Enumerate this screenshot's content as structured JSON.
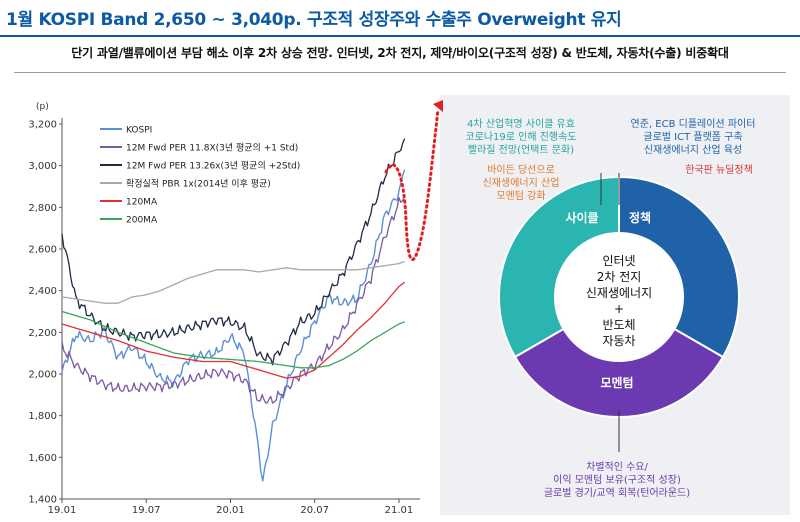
{
  "header": {
    "title": "1월 KOSPI Band 2,650 ~ 3,040p. 구조적 성장주와 수출주 Overweight 유지",
    "subtitle": "단기 과열/밸류에이션 부담 해소 이후 2차 상승 전망. 인터넷, 2차 전지, 제약/바이오(구조적 성장) & 반도체, 자동차(수출) 비중확대"
  },
  "chart_data": {
    "type": "line",
    "unit_label": "(p)",
    "ylim": [
      1400,
      3200
    ],
    "y_ticks": [
      "1,400",
      "1,600",
      "1,800",
      "2,000",
      "2,200",
      "2,400",
      "2,600",
      "2,800",
      "3,000",
      "3,200"
    ],
    "x_ticks": [
      "19.01",
      "19.07",
      "20.01",
      "20.07",
      "21.01"
    ],
    "x_ticks_t": [
      0,
      6,
      12,
      18,
      24
    ],
    "series": [
      {
        "name": "KOSPI",
        "color": "#5b8fd6",
        "points": [
          [
            0,
            2010
          ],
          [
            1,
            2190
          ],
          [
            2,
            2160
          ],
          [
            3,
            2210
          ],
          [
            4,
            2080
          ],
          [
            5,
            2130
          ],
          [
            6,
            2060
          ],
          [
            7,
            1980
          ],
          [
            8,
            1960
          ],
          [
            9,
            2070
          ],
          [
            10,
            2090
          ],
          [
            11,
            2100
          ],
          [
            12,
            2180
          ],
          [
            13,
            2100
          ],
          [
            14,
            1640
          ],
          [
            14.3,
            1480
          ],
          [
            15,
            1750
          ],
          [
            16,
            1950
          ],
          [
            17,
            2120
          ],
          [
            18,
            2250
          ],
          [
            19,
            2370
          ],
          [
            20,
            2340
          ],
          [
            21,
            2360
          ],
          [
            22,
            2530
          ],
          [
            23,
            2760
          ],
          [
            24,
            2870
          ],
          [
            24.4,
            2980
          ]
        ]
      },
      {
        "name": "12M Fwd PER 11.8X(3년 평균의 +1 Std)",
        "color": "#7a5aa6",
        "points": [
          [
            0,
            2130
          ],
          [
            1,
            2040
          ],
          [
            2,
            1990
          ],
          [
            3,
            1950
          ],
          [
            4,
            1930
          ],
          [
            5,
            1930
          ],
          [
            6,
            1940
          ],
          [
            7,
            1940
          ],
          [
            8,
            1950
          ],
          [
            9,
            1970
          ],
          [
            10,
            1990
          ],
          [
            11,
            2010
          ],
          [
            12,
            2000
          ],
          [
            13,
            1970
          ],
          [
            14,
            1880
          ],
          [
            15,
            1870
          ],
          [
            16,
            1930
          ],
          [
            17,
            2000
          ],
          [
            18,
            2040
          ],
          [
            19,
            2130
          ],
          [
            20,
            2210
          ],
          [
            21,
            2330
          ],
          [
            22,
            2460
          ],
          [
            23,
            2660
          ],
          [
            24,
            2820
          ],
          [
            24.4,
            2860
          ]
        ]
      },
      {
        "name": "12M Fwd PER 13.26x(3년 평균의 +2Std)",
        "color": "#1f2a44",
        "points": [
          [
            0,
            2670
          ],
          [
            1,
            2360
          ],
          [
            2,
            2280
          ],
          [
            3,
            2220
          ],
          [
            4,
            2200
          ],
          [
            5,
            2180
          ],
          [
            6,
            2190
          ],
          [
            7,
            2190
          ],
          [
            8,
            2200
          ],
          [
            9,
            2220
          ],
          [
            10,
            2240
          ],
          [
            11,
            2260
          ],
          [
            12,
            2250
          ],
          [
            13,
            2220
          ],
          [
            14,
            2090
          ],
          [
            15,
            2070
          ],
          [
            16,
            2150
          ],
          [
            17,
            2250
          ],
          [
            18,
            2290
          ],
          [
            19,
            2390
          ],
          [
            20,
            2480
          ],
          [
            21,
            2620
          ],
          [
            22,
            2770
          ],
          [
            23,
            2950
          ],
          [
            24,
            3070
          ],
          [
            24.4,
            3130
          ]
        ]
      },
      {
        "name": "확정실적 PBR 1x(2014년 이후 평균)",
        "color": "#a8a8a8",
        "points": [
          [
            0,
            2370
          ],
          [
            1,
            2360
          ],
          [
            2,
            2350
          ],
          [
            3,
            2340
          ],
          [
            4,
            2340
          ],
          [
            5,
            2370
          ],
          [
            6,
            2380
          ],
          [
            7,
            2400
          ],
          [
            8,
            2430
          ],
          [
            9,
            2460
          ],
          [
            10,
            2480
          ],
          [
            11,
            2500
          ],
          [
            12,
            2500
          ],
          [
            13,
            2500
          ],
          [
            14,
            2490
          ],
          [
            15,
            2500
          ],
          [
            16,
            2510
          ],
          [
            17,
            2500
          ],
          [
            18,
            2500
          ],
          [
            19,
            2500
          ],
          [
            20,
            2500
          ],
          [
            21,
            2500
          ],
          [
            22,
            2510
          ],
          [
            23,
            2520
          ],
          [
            24,
            2530
          ],
          [
            24.4,
            2540
          ]
        ]
      },
      {
        "name": "120MA",
        "color": "#e03030",
        "points": [
          [
            0,
            2240
          ],
          [
            2,
            2200
          ],
          [
            4,
            2160
          ],
          [
            6,
            2110
          ],
          [
            8,
            2080
          ],
          [
            10,
            2060
          ],
          [
            12,
            2060
          ],
          [
            14,
            2020
          ],
          [
            16,
            1980
          ],
          [
            17,
            1990
          ],
          [
            18,
            2020
          ],
          [
            19,
            2080
          ],
          [
            20,
            2140
          ],
          [
            21,
            2210
          ],
          [
            22,
            2270
          ],
          [
            23,
            2340
          ],
          [
            24,
            2420
          ],
          [
            24.4,
            2440
          ]
        ]
      },
      {
        "name": "200MA",
        "color": "#3aa65a",
        "points": [
          [
            0,
            2300
          ],
          [
            2,
            2260
          ],
          [
            4,
            2200
          ],
          [
            6,
            2150
          ],
          [
            8,
            2100
          ],
          [
            10,
            2080
          ],
          [
            12,
            2070
          ],
          [
            14,
            2060
          ],
          [
            16,
            2040
          ],
          [
            17,
            2030
          ],
          [
            18,
            2030
          ],
          [
            19,
            2040
          ],
          [
            20,
            2070
          ],
          [
            21,
            2110
          ],
          [
            22,
            2160
          ],
          [
            23,
            2200
          ],
          [
            24,
            2240
          ],
          [
            24.4,
            2250
          ]
        ]
      }
    ]
  },
  "donut": {
    "center_lines": [
      "인터넷",
      "2차 전지",
      "신재생에너지",
      "+",
      "반도체",
      "자동차"
    ],
    "segments": [
      {
        "label": "사이클",
        "color": "#2bb5b0"
      },
      {
        "label": "정책",
        "color": "#1f62a8"
      },
      {
        "label": "모멘텀",
        "color": "#6c3ab0"
      }
    ],
    "annotations": {
      "cycle_top": [
        "4차 산업혁명 사이클 유효",
        "코로나19로 인해 진행속도",
        "빨라질 전망(언택트 문화)"
      ],
      "cycle_bottom": [
        "바이든 당선으로",
        "신재생에너지 산업",
        "모멘텀 강화"
      ],
      "policy_top": [
        "연준, ECB 디플레이션 파이터",
        "글로벌 ICT 플랫폼 구축",
        "신재생에너지 산업 육성"
      ],
      "policy_bottom": [
        "한국판 뉴딜정책"
      ],
      "momentum_bottom": [
        "차별적인 수요/",
        "이익 모멘텀 보유(구조적 성장)",
        "글로벌 경기/교역 회복(턴어라운드)"
      ]
    },
    "annotation_colors": {
      "cycle_top": "#2aa39e",
      "cycle_bottom": "#e07a2a",
      "policy_top": "#1f62a8",
      "policy_bottom": "#e03030",
      "momentum_bottom": "#6c3ab0"
    }
  }
}
